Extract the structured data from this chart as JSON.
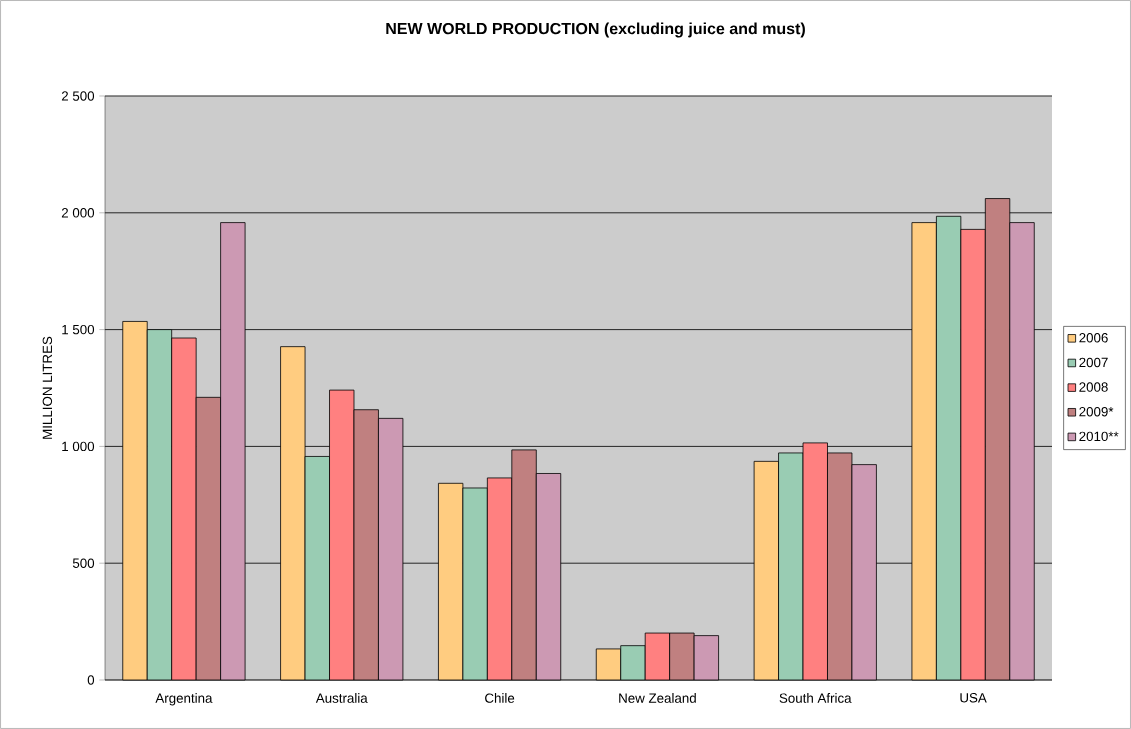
{
  "chart_data": {
    "type": "bar",
    "title": "NEW WORLD PRODUCTION (excluding juice and must)",
    "ylabel": "MILLION LITRES",
    "categories": [
      "Argentina",
      "Australia",
      "Chile",
      "New Zealand",
      "South Africa",
      "USA"
    ],
    "series": [
      {
        "name": "2006",
        "color": "#ffcc80",
        "values": [
          1535,
          1427,
          842,
          133,
          936,
          1958
        ]
      },
      {
        "name": "2007",
        "color": "#99ccb3",
        "values": [
          1500,
          957,
          822,
          147,
          972,
          1985
        ]
      },
      {
        "name": "2008",
        "color": "#ff8080",
        "values": [
          1464,
          1241,
          865,
          201,
          1015,
          1929
        ]
      },
      {
        "name": "2009*",
        "color": "#c08080",
        "values": [
          1210,
          1157,
          985,
          201,
          972,
          2061
        ]
      },
      {
        "name": "2010**",
        "color": "#cc99b3",
        "values": [
          1958,
          1120,
          884,
          190,
          922,
          1958
        ]
      }
    ],
    "ylim": [
      0,
      2500
    ],
    "yticks": [
      {
        "value": 0,
        "label": "0"
      },
      {
        "value": 500,
        "label": "500"
      },
      {
        "value": 1000,
        "label": "1 000"
      },
      {
        "value": 1500,
        "label": "1 500"
      },
      {
        "value": 2000,
        "label": "2 000"
      },
      {
        "value": 2500,
        "label": "2 500"
      }
    ],
    "grid": "y",
    "legend": "right"
  }
}
